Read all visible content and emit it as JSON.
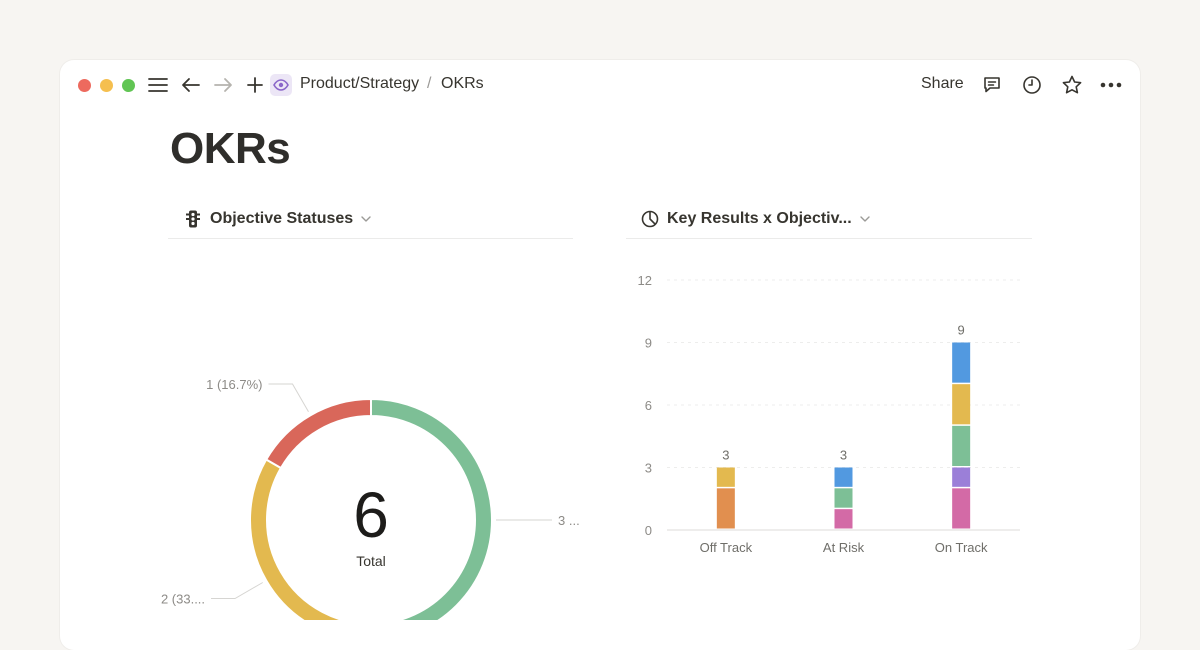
{
  "breadcrumb": {
    "parent": "Product/Strategy",
    "separator": "/",
    "current": "OKRs"
  },
  "header": {
    "share_label": "Share"
  },
  "page": {
    "title": "OKRs"
  },
  "donut_block": {
    "title": "Objective Statuses"
  },
  "bar_block": {
    "title": "Key Results x Objectiv..."
  },
  "colors": {
    "red": "#d9675a",
    "yellow": "#e3b94f",
    "green": "#7dbf96",
    "blue": "#5299e0",
    "orange": "#e18f4f",
    "purple": "#9b7fd8",
    "pink": "#d36aa6"
  },
  "chart_data": [
    {
      "type": "pie",
      "center_value": "6",
      "center_label": "Total",
      "slices": [
        {
          "label": "3 ...",
          "value": 3,
          "color": "#7dbf96"
        },
        {
          "label": "2 (33....",
          "value": 2,
          "color": "#e3b94f"
        },
        {
          "label": "1 (16.7%)",
          "value": 1,
          "color": "#d9675a"
        }
      ]
    },
    {
      "type": "bar",
      "stacked": true,
      "categories": [
        "Off Track",
        "At Risk",
        "On Track"
      ],
      "totals": [
        "3",
        "3",
        "9"
      ],
      "y_ticks": [
        "0",
        "3",
        "6",
        "9",
        "12"
      ],
      "ylim": [
        0,
        12
      ],
      "grid": true,
      "segments": [
        [
          {
            "value": 2,
            "color": "#e18f4f"
          },
          {
            "value": 1,
            "color": "#e3b94f"
          }
        ],
        [
          {
            "value": 1,
            "color": "#d36aa6"
          },
          {
            "value": 1,
            "color": "#7dbf96"
          },
          {
            "value": 1,
            "color": "#5299e0"
          }
        ],
        [
          {
            "value": 2,
            "color": "#d36aa6"
          },
          {
            "value": 1,
            "color": "#9b7fd8"
          },
          {
            "value": 2,
            "color": "#7dbf96"
          },
          {
            "value": 2,
            "color": "#e3b94f"
          },
          {
            "value": 2,
            "color": "#5299e0"
          }
        ]
      ]
    }
  ]
}
